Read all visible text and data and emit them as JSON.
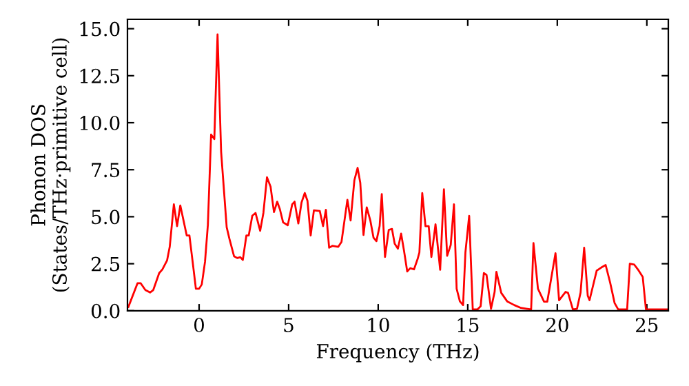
{
  "chart_data": {
    "type": "line",
    "xlabel": "Frequency (THz)",
    "ylabel": "Phonon DOS\n(States/THz·primitive cell)",
    "xlim": [
      -4,
      26.2
    ],
    "xticks": [
      0,
      5,
      10,
      15,
      20,
      25
    ],
    "ylim": [
      0,
      15.5
    ],
    "yticks": [
      {
        "value": 0,
        "label": "0.0"
      },
      {
        "value": 2.5,
        "label": "2.5"
      },
      {
        "value": 5,
        "label": "5.0"
      },
      {
        "value": 7.5,
        "label": "7.5"
      },
      {
        "value": 10,
        "label": "10.0"
      },
      {
        "value": 12.5,
        "label": "12.5"
      },
      {
        "value": 15,
        "label": "15.0"
      }
    ],
    "grid": false,
    "marker": "none",
    "line_style": "solid",
    "series": [
      {
        "color": "#ff0000",
        "x": [
          -3.95,
          -3.44,
          -3.26,
          -3.0,
          -2.74,
          -2.56,
          -2.23,
          -2.05,
          -1.79,
          -1.64,
          -1.41,
          -1.23,
          -1.05,
          -0.87,
          -0.69,
          -0.54,
          -0.36,
          -0.18,
          0.0,
          0.15,
          0.33,
          0.49,
          0.67,
          0.85,
          1.03,
          1.23,
          1.54,
          1.69,
          1.95,
          2.13,
          2.3,
          2.44,
          2.64,
          2.77,
          2.97,
          3.15,
          3.41,
          3.59,
          3.79,
          3.99,
          4.18,
          4.36,
          4.51,
          4.69,
          4.95,
          5.2,
          5.33,
          5.54,
          5.72,
          5.9,
          6.05,
          6.23,
          6.41,
          6.74,
          6.92,
          7.08,
          7.26,
          7.44,
          7.77,
          7.95,
          8.28,
          8.46,
          8.67,
          8.85,
          9.0,
          9.18,
          9.36,
          9.56,
          9.74,
          9.9,
          10.08,
          10.2,
          10.38,
          10.59,
          10.77,
          10.92,
          11.1,
          11.28,
          11.44,
          11.62,
          11.79,
          12.0,
          12.2,
          12.3,
          12.46,
          12.64,
          12.82,
          12.97,
          13.2,
          13.46,
          13.67,
          13.85,
          14.05,
          14.23,
          14.38,
          14.56,
          14.74,
          14.87,
          15.08,
          15.28,
          15.54,
          15.72,
          15.9,
          16.05,
          16.3,
          16.5,
          16.6,
          16.87,
          17.2,
          17.6,
          17.97,
          18.54,
          18.67,
          18.92,
          19.26,
          19.44,
          19.9,
          20.1,
          20.46,
          20.6,
          20.87,
          21.1,
          21.3,
          21.5,
          21.7,
          21.8,
          22.2,
          22.46,
          22.7,
          22.95,
          23.2,
          23.4,
          23.9,
          24.05,
          24.3,
          24.5,
          24.77,
          24.95,
          26.2
        ],
        "values": [
          0.2,
          1.46,
          1.46,
          1.1,
          0.97,
          1.1,
          2.0,
          2.2,
          2.67,
          3.4,
          5.66,
          4.5,
          5.6,
          4.8,
          4.0,
          4.0,
          2.6,
          1.17,
          1.17,
          1.4,
          2.6,
          4.57,
          9.37,
          9.13,
          14.7,
          8.45,
          4.44,
          3.84,
          2.9,
          2.8,
          2.85,
          2.7,
          4.0,
          4.0,
          5.05,
          5.2,
          4.25,
          5.2,
          7.1,
          6.6,
          5.25,
          5.8,
          5.4,
          4.7,
          4.55,
          5.66,
          5.8,
          4.64,
          5.76,
          6.26,
          5.85,
          4.0,
          5.34,
          5.3,
          4.5,
          5.37,
          3.35,
          3.45,
          3.4,
          3.66,
          5.9,
          4.8,
          6.94,
          7.6,
          6.8,
          4.03,
          5.5,
          4.8,
          3.88,
          3.7,
          4.5,
          6.2,
          2.86,
          4.3,
          4.35,
          3.57,
          3.3,
          4.1,
          3.2,
          2.09,
          2.26,
          2.2,
          2.75,
          3.1,
          6.26,
          4.5,
          4.5,
          2.86,
          4.6,
          2.18,
          6.46,
          2.92,
          3.5,
          5.66,
          1.17,
          0.5,
          0.3,
          3.1,
          5.05,
          0.07,
          0.07,
          0.24,
          2.0,
          1.9,
          0.1,
          1.0,
          2.07,
          0.95,
          0.5,
          0.3,
          0.15,
          0.07,
          3.6,
          1.17,
          0.48,
          0.48,
          3.06,
          0.56,
          1.0,
          0.95,
          0.07,
          0.1,
          0.97,
          3.35,
          0.8,
          0.56,
          2.13,
          2.3,
          2.43,
          1.5,
          0.41,
          0.07,
          0.07,
          2.5,
          2.45,
          2.2,
          1.8,
          0.07,
          0.07
        ]
      }
    ]
  }
}
